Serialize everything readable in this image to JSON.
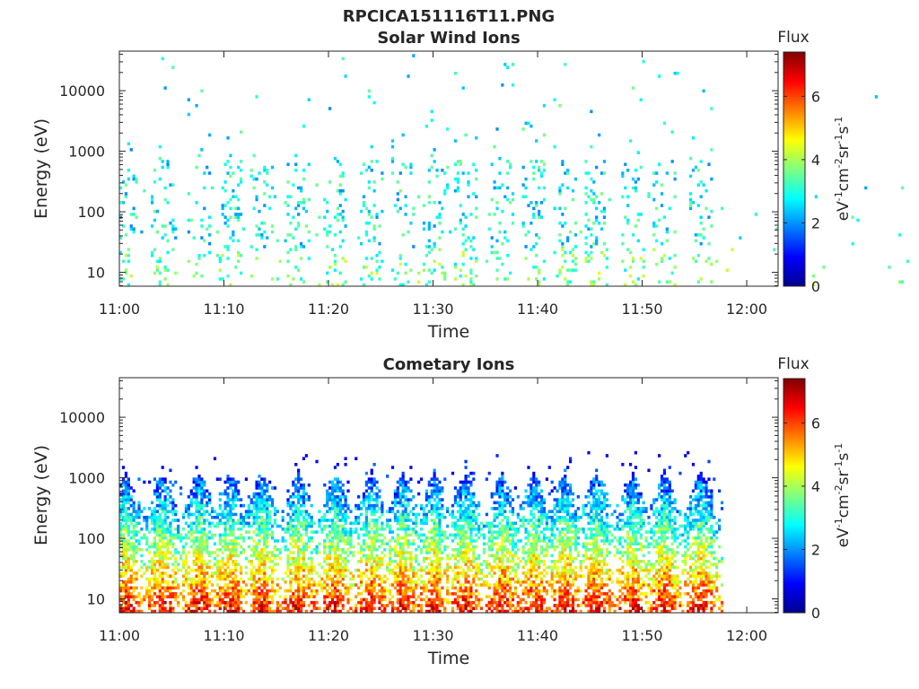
{
  "figure_title": "RPCICA151116T11.PNG",
  "chart_data": [
    {
      "type": "heatmap",
      "title": "Solar Wind Ions",
      "xlabel": "Time",
      "ylabel": "Energy (eV)",
      "x_ticks": [
        "11:00",
        "11:10",
        "11:20",
        "11:30",
        "11:40",
        "11:50",
        "12:00"
      ],
      "x_range": [
        "11:00",
        "12:03"
      ],
      "y_scale": "log",
      "y_ticks": [
        "10",
        "100",
        "1000",
        "10000"
      ],
      "y_range": [
        5.9,
        45000
      ],
      "grid": false,
      "colorbar": {
        "title": "Flux",
        "label": "eV-1cm-2sr-1s-1",
        "ticks": [
          "0",
          "2",
          "4",
          "6"
        ],
        "range": [
          0,
          7.4
        ],
        "colormap": "jet"
      },
      "data_extent": [
        "11:00",
        "11:57"
      ],
      "bursts_minutes": [
        0.5,
        4,
        7.5,
        10.5,
        13.5,
        17,
        20.5,
        24,
        27,
        30,
        33,
        36.5,
        39.5,
        42.5,
        45.5,
        49,
        52,
        55.5
      ],
      "flux_level_approx": "low (about 2-4), sparse pixels mostly 10-700 eV, isolated points up to about 6000 eV"
    },
    {
      "type": "heatmap",
      "title": "Cometary Ions",
      "xlabel": "Time",
      "ylabel": "Energy (eV)",
      "x_ticks": [
        "11:00",
        "11:10",
        "11:20",
        "11:30",
        "11:40",
        "11:50",
        "12:00"
      ],
      "x_range": [
        "11:00",
        "12:03"
      ],
      "y_scale": "log",
      "y_ticks": [
        "10",
        "100",
        "1000",
        "10000"
      ],
      "y_range": [
        5.9,
        45000
      ],
      "grid": false,
      "colorbar": {
        "title": "Flux",
        "label": "eV-1cm-2sr-1s-1",
        "ticks": [
          "0",
          "2",
          "4",
          "6"
        ],
        "range": [
          0,
          7.4
        ],
        "colormap": "jet"
      },
      "data_extent": [
        "11:00",
        "11:57"
      ],
      "bursts_minutes": [
        0.5,
        4,
        7.5,
        10.5,
        13.5,
        17,
        20.5,
        24,
        27,
        30,
        33,
        36.5,
        39.5,
        42.5,
        45.5,
        49,
        52,
        55.5
      ],
      "flux_level_approx": "dense; about 5-6.5 near 6-30 eV, about 3-4.5 near 100 eV, about 1-2 at 300-2500 eV"
    }
  ],
  "colors": {
    "axis": "#262626",
    "background": "#ffffff"
  }
}
